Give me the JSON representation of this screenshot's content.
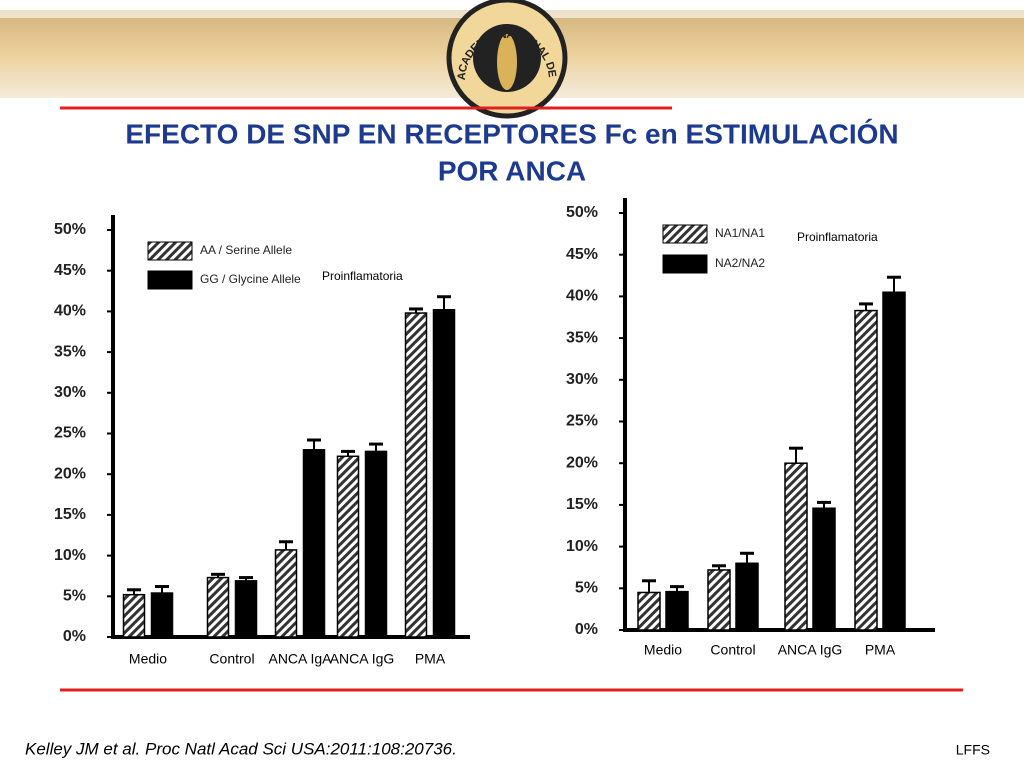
{
  "slide": {
    "title": [
      "EFECTO DE SNP EN RECEPTORES Fc en ESTIMULACIÓN",
      "POR ANCA"
    ],
    "logo": "ACADEMIA NACIONAL DE MEDICINA",
    "citation": "Kelley JM et al. Proc Natl Acad Sci USA:2011:108:20736.",
    "footer": "LFFS"
  },
  "chart_data": [
    {
      "type": "bar",
      "categories": [
        "Medio",
        "Control",
        "ANCA IgA",
        "ANCA IgG",
        "PMA"
      ],
      "series": [
        {
          "name": "AA / Serine Allele",
          "color": "#000000",
          "hatch": true,
          "values": [
            5.2,
            7.3,
            10.7,
            22.2,
            39.8
          ],
          "errors": [
            0.6,
            0.4,
            1.0,
            0.6,
            0.5
          ]
        },
        {
          "name": "GG / Glycine Allele",
          "color": "#000000",
          "hatch": false,
          "values": [
            5.4,
            6.9,
            23.0,
            22.8,
            40.2
          ],
          "errors": [
            0.8,
            0.4,
            1.2,
            0.9,
            1.6
          ]
        }
      ],
      "annotation": "Proinflamatoria",
      "ylim": [
        0,
        50
      ],
      "yticks": [
        {
          "value": 0,
          "label": "0%"
        },
        {
          "value": 5,
          "label": "5%"
        },
        {
          "value": 10,
          "label": "10%"
        },
        {
          "value": 15,
          "label": "15%"
        },
        {
          "value": 20,
          "label": "20%"
        },
        {
          "value": 25,
          "label": "25%"
        },
        {
          "value": 30,
          "label": "30%"
        },
        {
          "value": 35,
          "label": "35%"
        },
        {
          "value": 40,
          "label": "40%"
        },
        {
          "value": 45,
          "label": "45%"
        },
        {
          "value": 50,
          "label": "50%"
        }
      ]
    },
    {
      "type": "bar",
      "categories": [
        "Medio",
        "Control",
        "ANCA IgG",
        "PMA"
      ],
      "series": [
        {
          "name": "NA1/NA1",
          "color": "#000000",
          "hatch": true,
          "values": [
            4.5,
            7.2,
            20.0,
            38.3
          ],
          "errors": [
            1.4,
            0.5,
            1.8,
            0.8
          ]
        },
        {
          "name": "NA2/NA2",
          "color": "#000000",
          "hatch": false,
          "values": [
            4.6,
            8.0,
            14.6,
            40.5
          ],
          "errors": [
            0.6,
            1.2,
            0.7,
            1.8
          ]
        }
      ],
      "annotation": "Proinflamatoria",
      "ylim": [
        0,
        50
      ],
      "yticks": [
        {
          "value": 0,
          "label": "0%"
        },
        {
          "value": 5,
          "label": "5%"
        },
        {
          "value": 10,
          "label": "10%"
        },
        {
          "value": 15,
          "label": "15%"
        },
        {
          "value": 20,
          "label": "20%"
        },
        {
          "value": 25,
          "label": "25%"
        },
        {
          "value": 30,
          "label": "30%"
        },
        {
          "value": 35,
          "label": "35%"
        },
        {
          "value": 40,
          "label": "40%"
        },
        {
          "value": 45,
          "label": "45%"
        },
        {
          "value": 50,
          "label": "50%"
        }
      ]
    }
  ]
}
